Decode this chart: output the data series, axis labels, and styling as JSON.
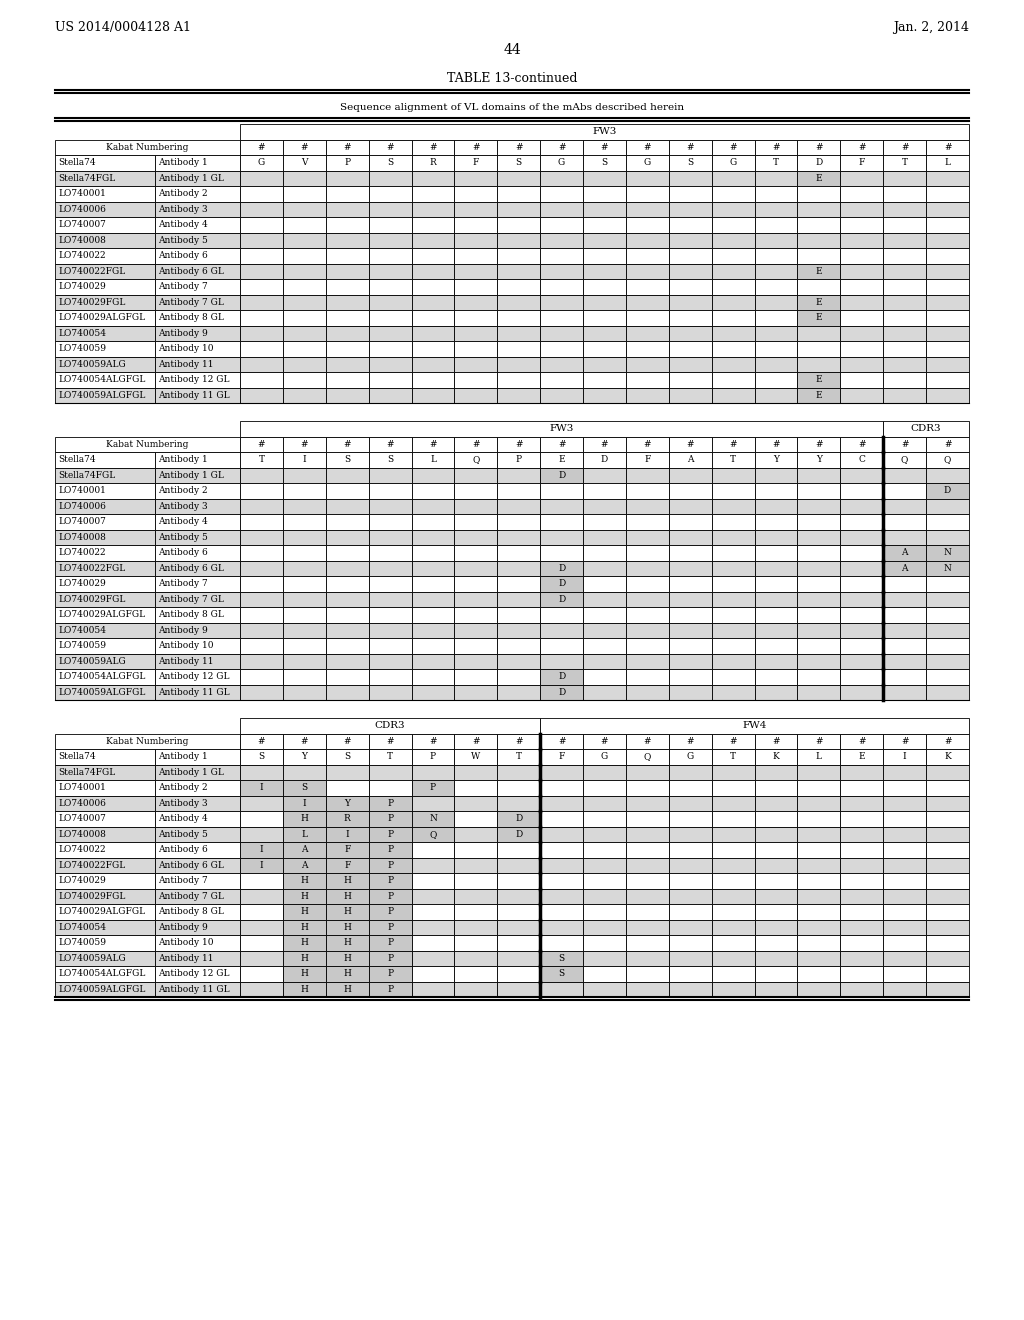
{
  "page_header_left": "US 2014/0004128 A1",
  "page_header_right": "Jan. 2, 2014",
  "page_number": "44",
  "table_title": "TABLE 13-continued",
  "table_subtitle": "Sequence alignment of VL domains of the mAbs described herein",
  "rows_common": [
    [
      "Stella74",
      "Antibody 1"
    ],
    [
      "Stella74FGL",
      "Antibody 1 GL"
    ],
    [
      "LO740001",
      "Antibody 2"
    ],
    [
      "LO740006",
      "Antibody 3"
    ],
    [
      "LO740007",
      "Antibody 4"
    ],
    [
      "LO740008",
      "Antibody 5"
    ],
    [
      "LO740022",
      "Antibody 6"
    ],
    [
      "LO740022FGL",
      "Antibody 6 GL"
    ],
    [
      "LO740029",
      "Antibody 7"
    ],
    [
      "LO740029FGL",
      "Antibody 7 GL"
    ],
    [
      "LO740029ALGFGL",
      "Antibody 8 GL"
    ],
    [
      "LO740054",
      "Antibody 9"
    ],
    [
      "LO740059",
      "Antibody 10"
    ],
    [
      "LO740059ALG",
      "Antibody 11"
    ],
    [
      "LO740054ALGFGL",
      "Antibody 12 GL"
    ],
    [
      "LO740059ALGFGL",
      "Antibody 11 GL"
    ]
  ],
  "t1_fw3_row": [
    "G",
    "V",
    "P",
    "S",
    "R",
    "F",
    "S",
    "G",
    "S",
    "G",
    "S",
    "G",
    "T",
    "D",
    "F",
    "T",
    "L"
  ],
  "t1_shaded_cells": {
    "1": {
      "13": "E"
    },
    "7": {
      "13": "E"
    },
    "9": {
      "13": "E"
    },
    "10": {
      "13": "E"
    },
    "14": {
      "13": "E"
    },
    "15": {
      "13": "E"
    }
  },
  "t2_fw3_row": [
    "T",
    "I",
    "S",
    "S",
    "L",
    "Q",
    "P",
    "E",
    "D",
    "F",
    "A",
    "T",
    "Y",
    "Y",
    "C",
    "Q",
    "Q"
  ],
  "t2_shaded_cells": {
    "1": {
      "7": "D"
    },
    "2": {
      "16": "D"
    },
    "6": {
      "15": "A",
      "16": "N"
    },
    "7": {
      "7": "D",
      "15": "A",
      "16": "N"
    },
    "8": {
      "7": "D"
    },
    "9": {
      "7": "D"
    },
    "14": {
      "7": "D"
    },
    "15": {
      "7": "D"
    }
  },
  "t2_n_fw3": 15,
  "t2_n_cdr3": 2,
  "t3_row0_cdr3": [
    "S",
    "Y",
    "S",
    "T",
    "P",
    "W",
    "T"
  ],
  "t3_row0_fw4": [
    "F",
    "G",
    "Q",
    "G",
    "T",
    "K",
    "L",
    "E",
    "I",
    "K"
  ],
  "t3_shaded_cells": {
    "2": {
      "0": "I",
      "1": "S",
      "4": "P"
    },
    "3": {
      "1": "I",
      "2": "Y",
      "3": "P"
    },
    "4": {
      "1": "H",
      "2": "R",
      "3": "P",
      "4": "N",
      "6": "D"
    },
    "5": {
      "1": "L",
      "2": "I",
      "3": "P",
      "4": "Q",
      "6": "D"
    },
    "6": {
      "0": "I",
      "1": "A",
      "2": "F",
      "3": "P"
    },
    "7": {
      "0": "I",
      "1": "A",
      "2": "F",
      "3": "P"
    },
    "8": {
      "1": "H",
      "2": "H",
      "3": "P"
    },
    "9": {
      "1": "H",
      "2": "H",
      "3": "P"
    },
    "10": {
      "1": "H",
      "2": "H",
      "3": "P"
    },
    "11": {
      "1": "H",
      "2": "H",
      "3": "P"
    },
    "12": {
      "1": "H",
      "2": "H",
      "3": "P"
    },
    "13": {
      "1": "H",
      "2": "H",
      "3": "P"
    },
    "14": {
      "1": "H",
      "2": "H",
      "3": "P"
    },
    "15": {
      "1": "H",
      "2": "H",
      "3": "P"
    }
  },
  "t3_fw4_shaded": {
    "13": {
      "0": "S"
    },
    "14": {
      "0": "S"
    }
  },
  "t3_n_cdr3": 7,
  "t3_n_fw4": 10,
  "row_gray_indices": [
    1,
    3,
    5,
    7,
    9,
    11,
    13,
    15
  ],
  "cell_shade_color": "#c8c8c8",
  "row_shade_color": "#d8d8d8",
  "white": "#ffffff"
}
